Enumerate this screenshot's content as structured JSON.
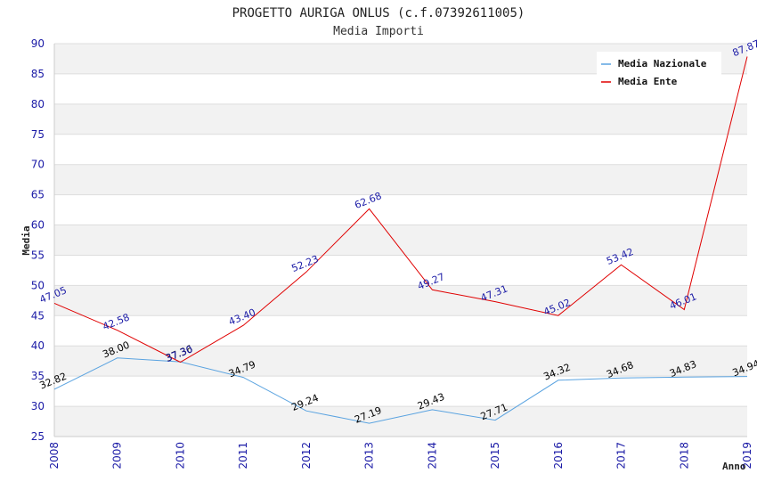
{
  "chart_data": {
    "type": "line",
    "title": "PROGETTO AURIGA ONLUS (c.f.07392611005)",
    "subtitle": "Media Importi",
    "xlabel": "Anno",
    "ylabel": "Media",
    "ylim": [
      25,
      90
    ],
    "yticks": [
      25,
      30,
      35,
      40,
      45,
      50,
      55,
      60,
      65,
      70,
      75,
      80,
      85,
      90
    ],
    "grid": true,
    "legend_position": "top-right",
    "x": [
      "2008",
      "2009",
      "2010",
      "2011",
      "2012",
      "2013",
      "2014",
      "2015",
      "2016",
      "2017",
      "2018",
      "2019"
    ],
    "series": [
      {
        "name": "Media Nazionale",
        "color": "#5aa3e0",
        "label_color": "#000000",
        "values": [
          32.82,
          38.0,
          37.36,
          34.79,
          29.24,
          27.19,
          29.43,
          27.71,
          34.32,
          34.68,
          34.83,
          34.94
        ],
        "labels": [
          "32.82",
          "38.00",
          "37.36",
          "34.79",
          "29.24",
          "27.19",
          "29.43",
          "27.71",
          "34.32",
          "34.68",
          "34.83",
          "34.94"
        ]
      },
      {
        "name": "Media Ente",
        "color": "#e00000",
        "label_color": "#1a1aa6",
        "values": [
          47.05,
          42.58,
          37.3,
          43.4,
          52.23,
          62.68,
          49.27,
          47.31,
          45.02,
          53.42,
          46.01,
          87.87
        ],
        "labels": [
          "47.05",
          "42.58",
          "37.30",
          "43.40",
          "52.23",
          "62.68",
          "49.27",
          "47.31",
          "45.02",
          "53.42",
          "46.01",
          "87.87"
        ]
      }
    ]
  }
}
